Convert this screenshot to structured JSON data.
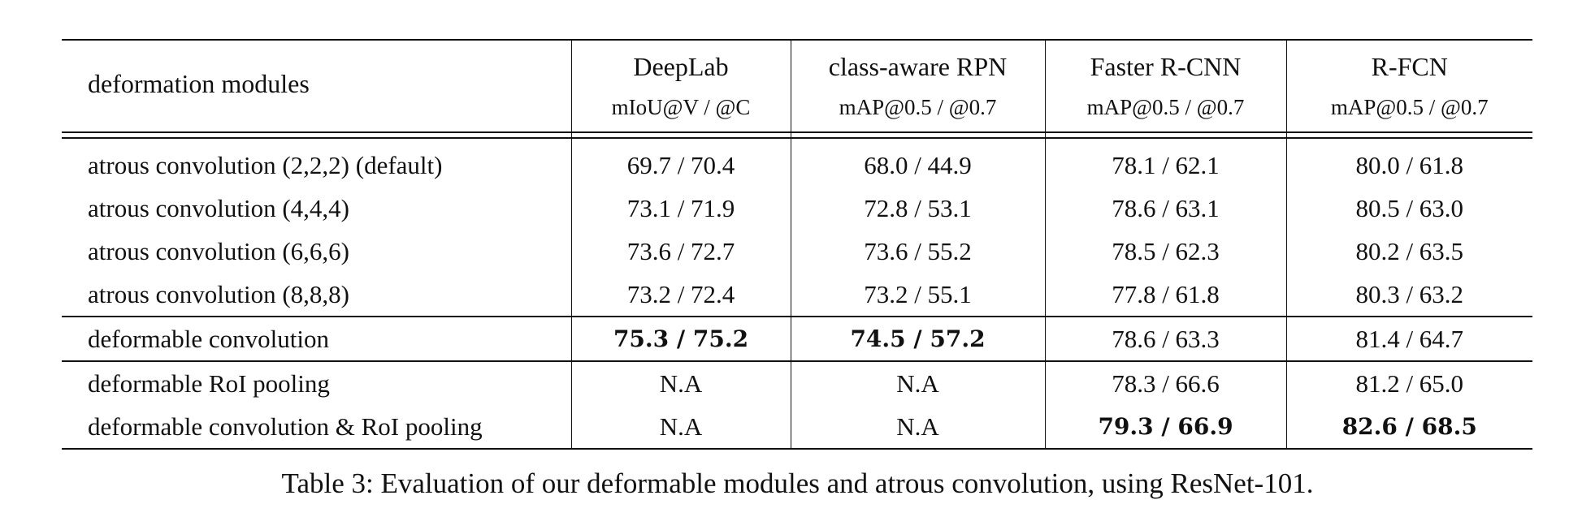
{
  "table": {
    "header": {
      "first": "deformation modules",
      "columns": [
        {
          "name": "DeepLab",
          "metric": "mIoU@V / @C"
        },
        {
          "name": "class-aware RPN",
          "metric": "mAP@0.5 / @0.7"
        },
        {
          "name": "Faster R-CNN",
          "metric": "mAP@0.5 / @0.7"
        },
        {
          "name": "R-FCN",
          "metric": "mAP@0.5 / @0.7"
        }
      ]
    },
    "rows": [
      {
        "label": "atrous convolution (2,2,2) (default)",
        "values": [
          "69.7 / 70.4",
          "68.0 / 44.9",
          "78.1 / 62.1",
          "80.0 / 61.8"
        ]
      },
      {
        "label": "atrous convolution (4,4,4)",
        "values": [
          "73.1 / 71.9",
          "72.8 / 53.1",
          "78.6 / 63.1",
          "80.5 / 63.0"
        ]
      },
      {
        "label": "atrous convolution (6,6,6)",
        "values": [
          "73.6 / 72.7",
          "73.6 / 55.2",
          "78.5 / 62.3",
          "80.2 / 63.5"
        ]
      },
      {
        "label": "atrous convolution (8,8,8)",
        "values": [
          "73.2 / 72.4",
          "73.2 / 55.1",
          "77.8 / 61.8",
          "80.3 / 63.2"
        ]
      },
      {
        "label": "deformable convolution",
        "values": [
          "75.3 / 75.2",
          "74.5 / 57.2",
          "78.6 / 63.3",
          "81.4 / 64.7"
        ]
      },
      {
        "label": "deformable RoI pooling",
        "values": [
          "N.A",
          "N.A",
          "78.3 / 66.6",
          "81.2 / 65.0"
        ]
      },
      {
        "label": "deformable convolution & RoI pooling",
        "values": [
          "N.A",
          "N.A",
          "79.3 / 66.9",
          "82.6 / 68.5"
        ]
      }
    ],
    "bold_cells": [
      [
        4,
        0
      ],
      [
        4,
        1
      ],
      [
        6,
        2
      ],
      [
        6,
        3
      ]
    ]
  },
  "caption": "Table 3: Evaluation of our deformable modules and atrous convolution, using ResNet-101."
}
